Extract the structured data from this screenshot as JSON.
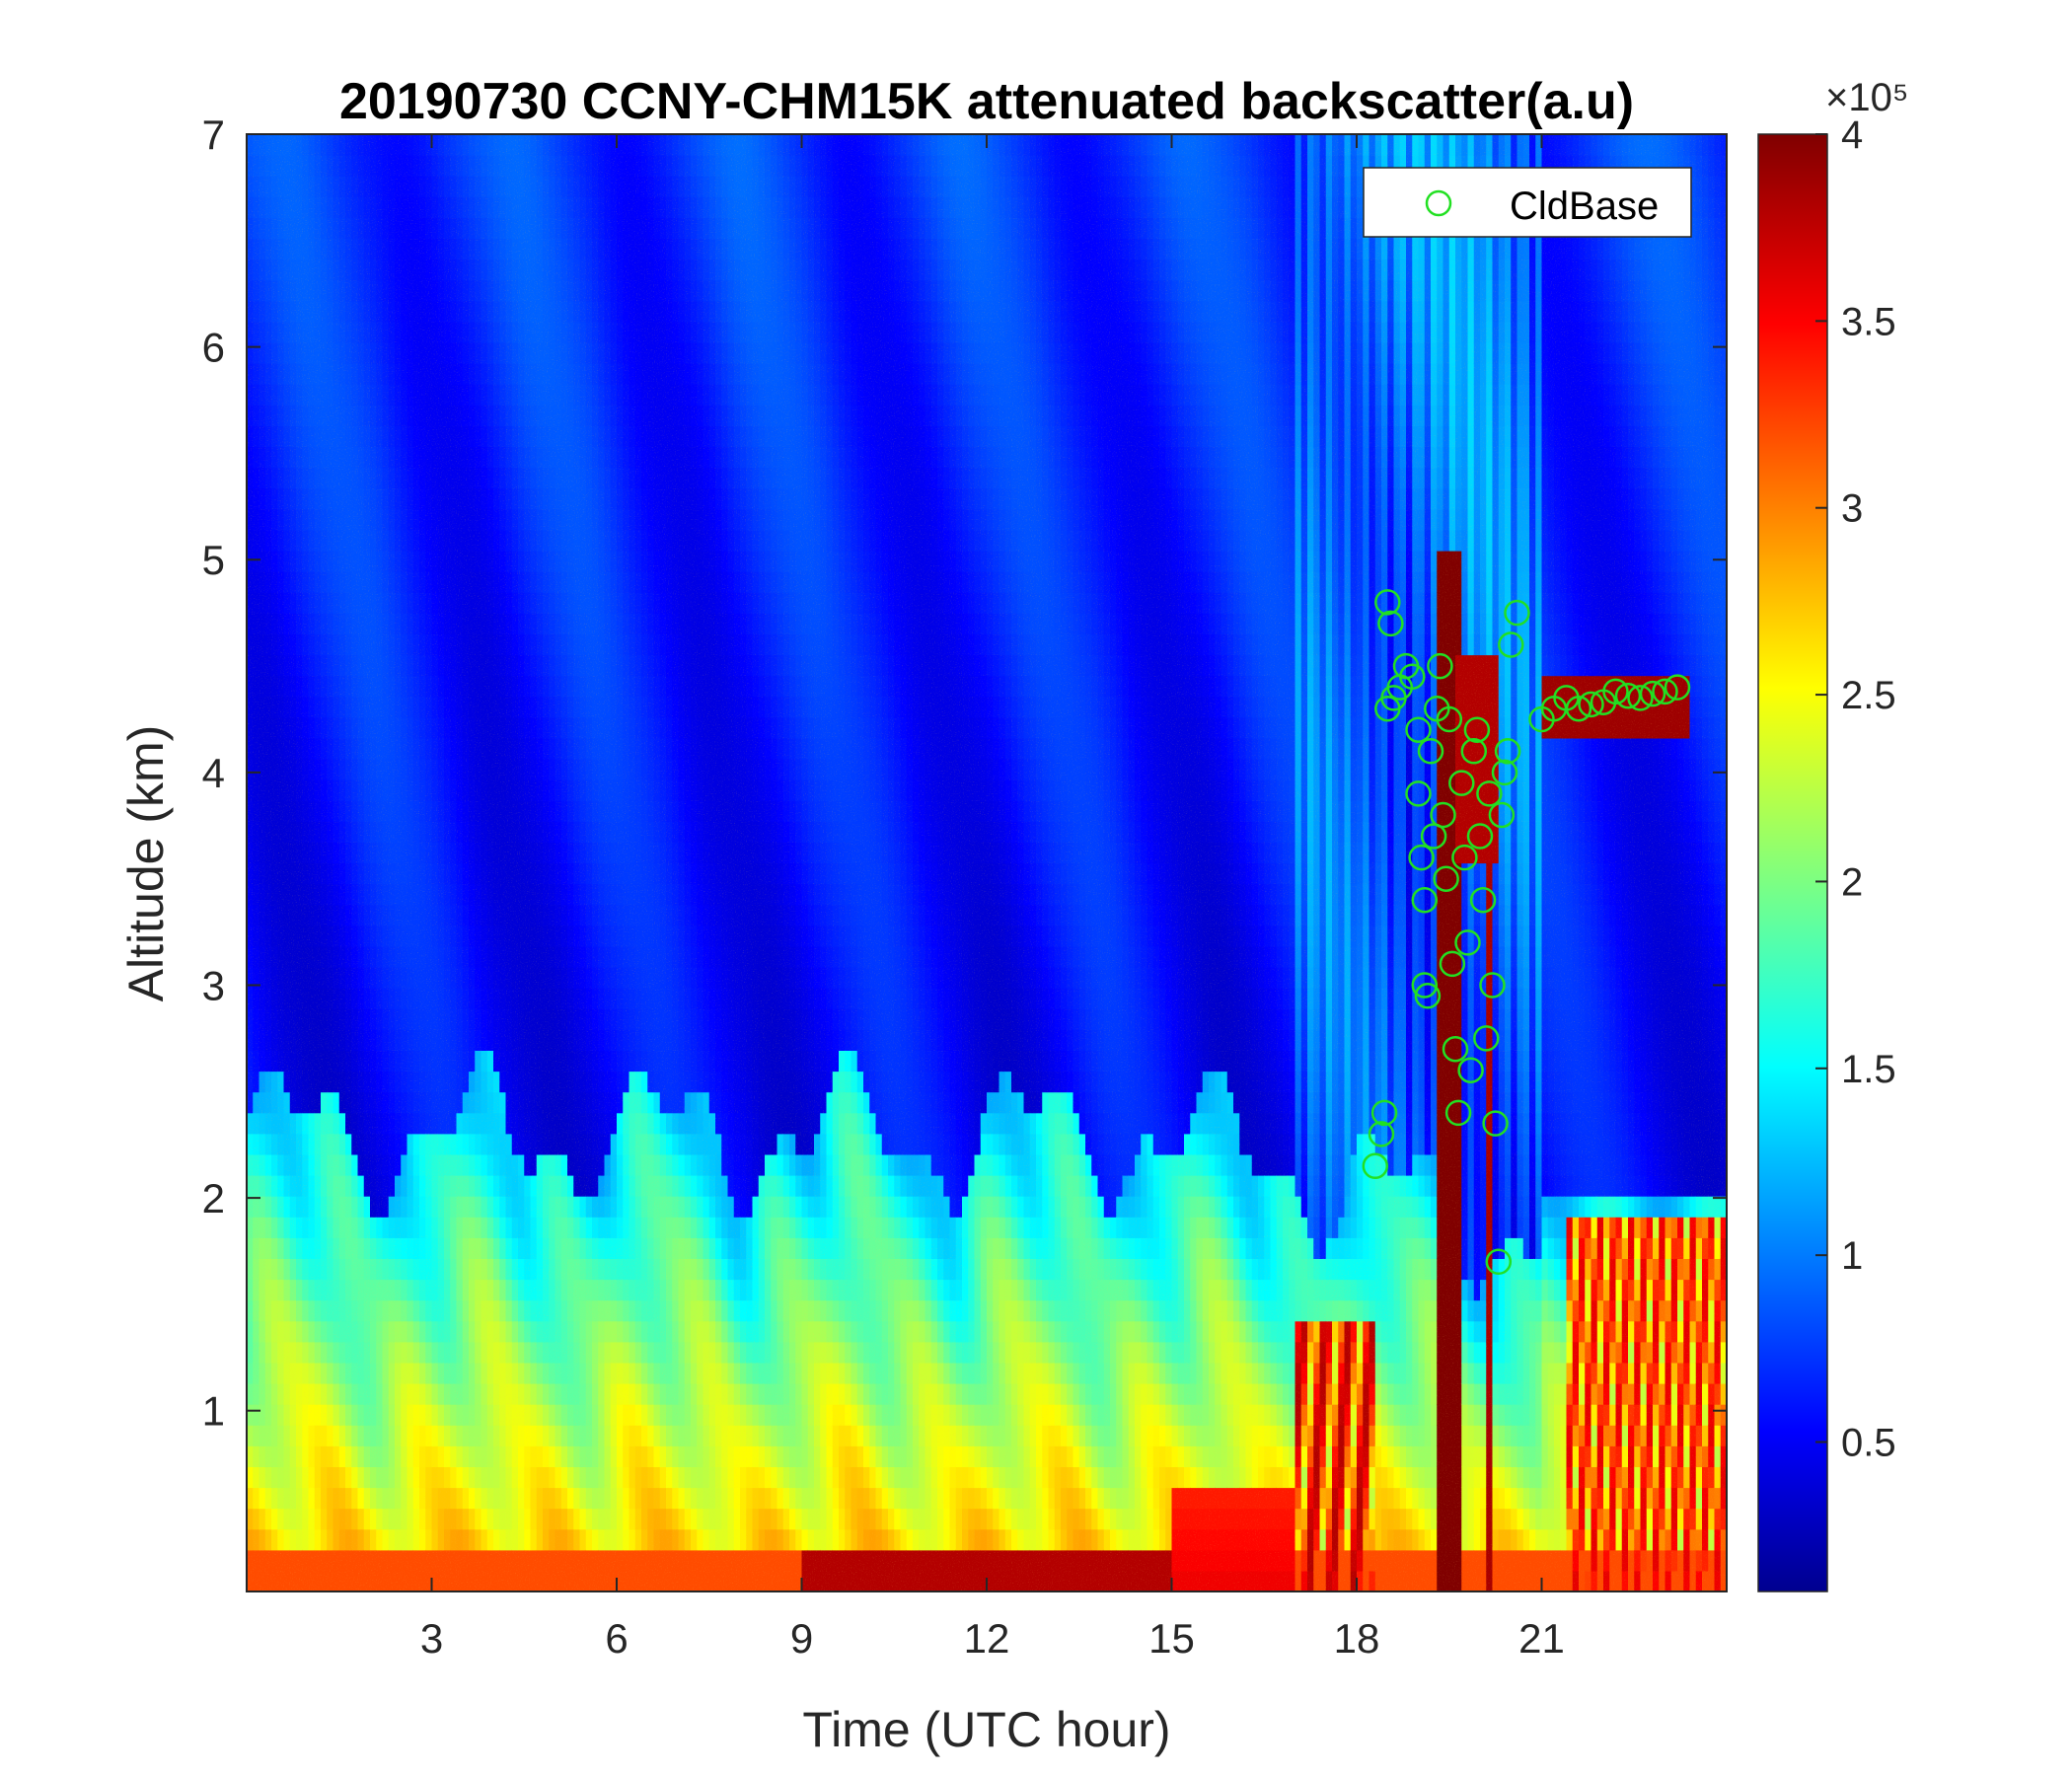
{
  "chart_data": {
    "type": "heatmap",
    "title": "20190730 CCNY-CHM15K attenuated backscatter(a.u)",
    "xlabel": "Time (UTC hour)",
    "ylabel": "Altitude (km)",
    "xlim": [
      0,
      24
    ],
    "ylim": [
      0.15,
      7
    ],
    "x_ticks": [
      "3",
      "6",
      "9",
      "12",
      "15",
      "18",
      "21"
    ],
    "y_ticks": [
      "1",
      "2",
      "3",
      "4",
      "5",
      "6",
      "7"
    ],
    "colorbar": {
      "colormap": "jet",
      "clim": [
        0.1,
        4.0
      ],
      "ticks": [
        "0.5",
        "1",
        "1.5",
        "2",
        "2.5",
        "3",
        "3.5",
        "4"
      ],
      "exponent_label": "×10⁵"
    },
    "legend": {
      "location": "top-right",
      "entries": [
        "CldBase"
      ]
    },
    "series": [
      {
        "name": "CldBase",
        "marker": "circle-open",
        "color": "#22e022",
        "points": [
          [
            18.3,
            2.15
          ],
          [
            18.4,
            2.3
          ],
          [
            18.45,
            2.4
          ],
          [
            18.5,
            4.8
          ],
          [
            18.55,
            4.7
          ],
          [
            18.5,
            4.3
          ],
          [
            18.6,
            4.35
          ],
          [
            18.7,
            4.4
          ],
          [
            18.8,
            4.5
          ],
          [
            18.9,
            4.45
          ],
          [
            19.0,
            4.2
          ],
          [
            19.0,
            3.9
          ],
          [
            19.05,
            3.6
          ],
          [
            19.1,
            3.4
          ],
          [
            19.1,
            3.0
          ],
          [
            19.15,
            2.95
          ],
          [
            19.2,
            4.1
          ],
          [
            19.25,
            3.7
          ],
          [
            19.3,
            4.3
          ],
          [
            19.35,
            4.5
          ],
          [
            19.4,
            3.8
          ],
          [
            19.45,
            3.5
          ],
          [
            19.5,
            4.25
          ],
          [
            19.55,
            3.1
          ],
          [
            19.6,
            2.7
          ],
          [
            19.65,
            2.4
          ],
          [
            19.7,
            3.95
          ],
          [
            19.75,
            3.6
          ],
          [
            19.8,
            3.2
          ],
          [
            19.85,
            2.6
          ],
          [
            19.9,
            4.1
          ],
          [
            19.95,
            4.2
          ],
          [
            20.0,
            3.7
          ],
          [
            20.05,
            3.4
          ],
          [
            20.1,
            2.75
          ],
          [
            20.15,
            3.9
          ],
          [
            20.2,
            3.0
          ],
          [
            20.25,
            2.35
          ],
          [
            20.3,
            1.7
          ],
          [
            20.35,
            3.8
          ],
          [
            20.4,
            4.0
          ],
          [
            20.45,
            4.1
          ],
          [
            20.5,
            4.6
          ],
          [
            20.6,
            4.75
          ],
          [
            21.0,
            4.25
          ],
          [
            21.2,
            4.3
          ],
          [
            21.4,
            4.35
          ],
          [
            21.6,
            4.3
          ],
          [
            21.8,
            4.32
          ],
          [
            22.0,
            4.33
          ],
          [
            22.2,
            4.38
          ],
          [
            22.4,
            4.36
          ],
          [
            22.6,
            4.35
          ],
          [
            22.8,
            4.37
          ],
          [
            23.0,
            4.38
          ],
          [
            23.2,
            4.4
          ]
        ]
      }
    ]
  }
}
